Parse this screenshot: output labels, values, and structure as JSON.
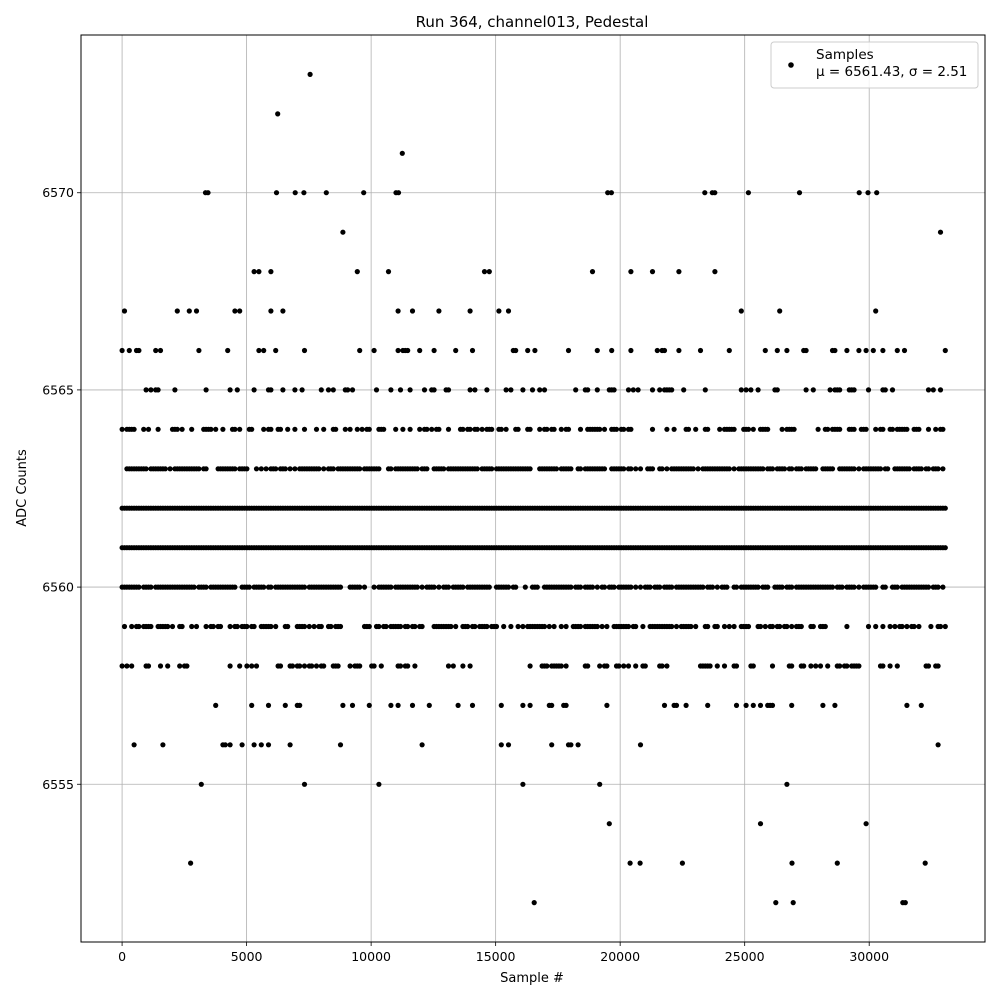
{
  "chart_data": {
    "type": "scatter",
    "title": "Run 364, channel013, Pedestal",
    "xlabel": "Sample #",
    "ylabel": "ADC Counts",
    "xlim": [
      -1650,
      34650
    ],
    "ylim": [
      6551,
      6574
    ],
    "x_ticks": [
      0,
      5000,
      10000,
      15000,
      20000,
      25000,
      30000
    ],
    "y_ticks": [
      6555,
      6560,
      6565,
      6570
    ],
    "grid": true,
    "legend_position": "top-right",
    "marker_color": "#000000",
    "series": [
      {
        "name": "Samples",
        "stat_label": "μ = 6561.43, σ = 2.51",
        "x_range": [
          0,
          33100
        ],
        "level_density": [
          {
            "y": 6553,
            "d": 0.0004
          },
          {
            "y": 6554,
            "d": 0.0011
          },
          {
            "y": 6555,
            "d": 0.004
          },
          {
            "y": 6556,
            "d": 0.011
          },
          {
            "y": 6557,
            "d": 0.028
          },
          {
            "y": 6558,
            "d": 0.06
          },
          {
            "y": 6559,
            "d": 0.11
          },
          {
            "y": 6560,
            "d": 0.16
          },
          {
            "y": 6561,
            "d": 0.2
          },
          {
            "y": 6562,
            "d": 0.2
          },
          {
            "y": 6563,
            "d": 0.15
          },
          {
            "y": 6564,
            "d": 0.09
          },
          {
            "y": 6565,
            "d": 0.05
          },
          {
            "y": 6566,
            "d": 0.027
          },
          {
            "y": 6567,
            "d": 0.012
          },
          {
            "y": 6568,
            "d": 0.005
          },
          {
            "y": 6569,
            "d": 0.0014
          },
          {
            "y": 6570,
            "d": 0.0005
          }
        ],
        "points": [
          {
            "x": 7550,
            "y": 6573
          },
          {
            "x": 6250,
            "y": 6572
          },
          {
            "x": 11250,
            "y": 6571
          },
          {
            "x": 3350,
            "y": 6570
          },
          {
            "x": 3450,
            "y": 6570
          },
          {
            "x": 6200,
            "y": 6570
          },
          {
            "x": 6950,
            "y": 6570
          },
          {
            "x": 7300,
            "y": 6570
          },
          {
            "x": 8200,
            "y": 6570
          },
          {
            "x": 9700,
            "y": 6570
          },
          {
            "x": 11000,
            "y": 6570
          },
          {
            "x": 11100,
            "y": 6570
          },
          {
            "x": 19500,
            "y": 6570
          },
          {
            "x": 19650,
            "y": 6570
          },
          {
            "x": 23400,
            "y": 6570
          },
          {
            "x": 23700,
            "y": 6570
          },
          {
            "x": 23800,
            "y": 6570
          },
          {
            "x": 25150,
            "y": 6570
          },
          {
            "x": 27200,
            "y": 6570
          },
          {
            "x": 29600,
            "y": 6570
          },
          {
            "x": 29950,
            "y": 6570
          },
          {
            "x": 30300,
            "y": 6570
          },
          {
            "x": 2750,
            "y": 6553
          },
          {
            "x": 20400,
            "y": 6553
          },
          {
            "x": 20800,
            "y": 6553
          },
          {
            "x": 22500,
            "y": 6553
          },
          {
            "x": 26900,
            "y": 6553
          },
          {
            "x": 32250,
            "y": 6553
          },
          {
            "x": 16550,
            "y": 6552
          },
          {
            "x": 26250,
            "y": 6552
          },
          {
            "x": 26950,
            "y": 6552
          },
          {
            "x": 31350,
            "y": 6552
          },
          {
            "x": 31450,
            "y": 6552
          }
        ]
      }
    ]
  }
}
